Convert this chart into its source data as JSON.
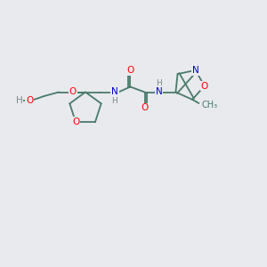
{
  "bg_color": "#e8eaed",
  "bond_color": "#4a7a6a",
  "atom_colors": {
    "O": "#ff0000",
    "N": "#0000cc",
    "H": "#7a8a8a",
    "C": "#4a7a6a"
  },
  "lw": 1.3,
  "fs": 7.5
}
